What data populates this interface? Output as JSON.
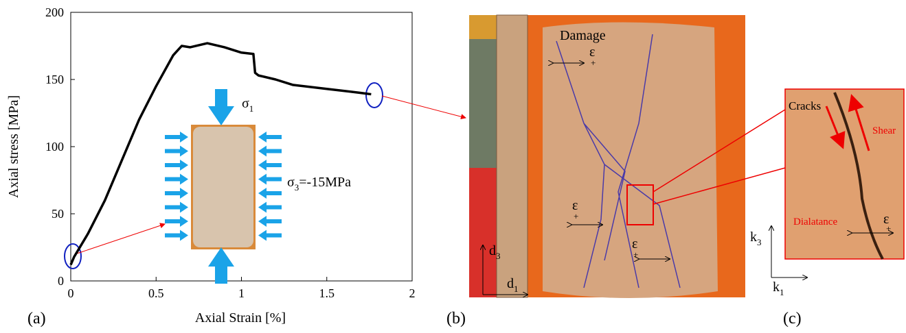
{
  "chart_data": {
    "type": "line",
    "xlabel": "Axial Strain [%]",
    "ylabel": "Axial stress [MPa]",
    "xlim": [
      0,
      2
    ],
    "xticks": [
      0,
      0.5,
      1,
      1.5,
      2
    ],
    "ylim": [
      0,
      200
    ],
    "yticks": [
      0,
      50,
      100,
      150,
      200
    ],
    "series": [
      {
        "color": "#000000",
        "x": [
          0.0,
          0.02,
          0.1,
          0.2,
          0.3,
          0.4,
          0.5,
          0.6,
          0.65,
          0.7,
          0.8,
          0.9,
          1.0,
          1.07,
          1.08,
          1.1,
          1.2,
          1.3,
          1.5,
          1.7,
          1.76
        ],
        "values": [
          12,
          18,
          35,
          60,
          90,
          120,
          145,
          168,
          175,
          174,
          177,
          174,
          170,
          169,
          155,
          153,
          150,
          146,
          143,
          140,
          139
        ]
      }
    ],
    "annotations": [
      {
        "symbol": "σ",
        "subscript": "1"
      },
      {
        "symbol": "σ",
        "subscript": "3",
        "suffix": "=-15MPa"
      }
    ]
  },
  "panels": [
    "(a)",
    "(b)",
    "(c)"
  ],
  "photo_b": {
    "damage": "Damage",
    "strain": "ε",
    "plus": "+",
    "d": "d",
    "d_sub_3": "3",
    "d_sub_1": "1"
  },
  "photo_c": {
    "cracks": "Cracks",
    "shear": "Shear",
    "dilatance": "Dialatance",
    "strain": "ε",
    "plus": "+",
    "k": "k",
    "k_sub_3": "3",
    "k_sub_1": "1"
  }
}
